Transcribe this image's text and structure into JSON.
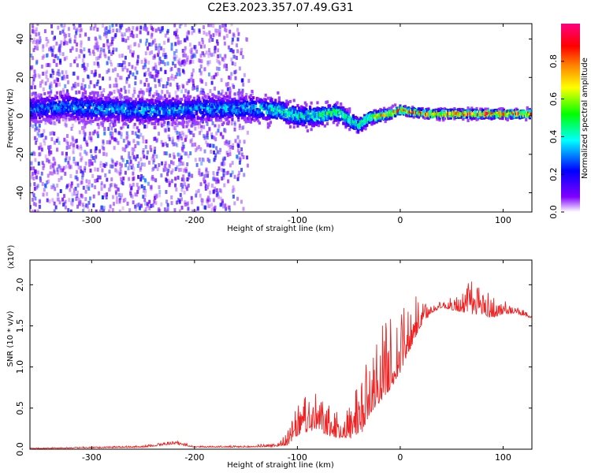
{
  "title": "C2E3.2023.357.07.49.G31",
  "chart_data": [
    {
      "type": "heatmap",
      "xlabel": "Height of straight line (km)",
      "ylabel": "Frequency (Hz)",
      "xlim": [
        -360,
        128
      ],
      "ylim": [
        -50,
        48
      ],
      "xticks": [
        -300,
        -200,
        -100,
        0,
        100
      ],
      "xtick_labels": [
        "-300",
        "-200",
        "-100",
        "0",
        "100"
      ],
      "yticks": [
        -40,
        -20,
        0,
        20,
        40
      ],
      "ytick_labels": [
        "-40",
        "-20",
        "0",
        "20",
        "40"
      ],
      "grid": false,
      "colorbar": {
        "label": "Normalized spectral amplitude",
        "range": [
          0,
          1
        ],
        "ticks": [
          0,
          0.2,
          0.4,
          0.6,
          0.8
        ],
        "tick_labels": [
          "0.0",
          "0.2",
          "0.4",
          "0.6",
          "0.8"
        ],
        "colors": [
          "#ffffff",
          "#8000ff",
          "#0000ff",
          "#00ffff",
          "#00ff00",
          "#ffff00",
          "#ff8000",
          "#ff0000",
          "#ff0080"
        ]
      },
      "ridge_center_hz": {
        "x": [
          -360,
          -330,
          -300,
          -260,
          -220,
          -180,
          -150,
          -120,
          -100,
          -80,
          -60,
          -50,
          -40,
          -30,
          -20,
          -10,
          0,
          10,
          30,
          60,
          100,
          128
        ],
        "y": [
          3,
          5,
          4,
          3,
          3,
          4,
          4,
          3,
          0,
          0,
          2,
          -2,
          -5,
          -1,
          0,
          1,
          3,
          2,
          1,
          1,
          1,
          1
        ]
      },
      "ridge_halfwidth_hz": {
        "x": [
          -360,
          -150,
          -100,
          -50,
          -30,
          0,
          128
        ],
        "y": [
          6,
          6,
          5,
          4,
          3,
          2,
          2
        ]
      },
      "ridge_peak_amplitude": {
        "x": [
          -360,
          -300,
          -250,
          -200,
          -150,
          -120,
          -100,
          -80,
          -60,
          -40,
          -20,
          0,
          40,
          80,
          128
        ],
        "y": [
          0.3,
          0.35,
          0.35,
          0.35,
          0.35,
          0.45,
          0.45,
          0.5,
          0.55,
          0.5,
          0.75,
          0.85,
          0.9,
          0.9,
          0.85
        ]
      },
      "scatter_coverage_x": [
        -360,
        -140
      ]
    },
    {
      "type": "line",
      "xlabel": "Height of straight line (km)",
      "ylabel": "SNR (10 * v/v)",
      "y_multiplier_label": "(x10⁴)",
      "xlim": [
        -360,
        128
      ],
      "ylim": [
        0,
        2.3
      ],
      "xticks": [
        -300,
        -200,
        -100,
        0,
        100
      ],
      "xtick_labels": [
        "-300",
        "-200",
        "-100",
        "0",
        "100"
      ],
      "yticks": [
        0,
        0.5,
        1.0,
        1.5,
        2.0
      ],
      "ytick_labels": [
        "0.0",
        "0.5",
        "1.0",
        "1.5",
        "2.0"
      ],
      "grid": false,
      "series": [
        {
          "color": "#ee2222",
          "envelope_x": [
            -360,
            -300,
            -250,
            -220,
            -200,
            -150,
            -120,
            -110,
            -100,
            -90,
            -80,
            -70,
            -60,
            -50,
            -40,
            -30,
            -20,
            -10,
            0,
            10,
            20,
            30,
            40,
            60,
            70,
            80,
            90,
            100,
            110,
            120,
            128
          ],
          "envelope_y": [
            0.01,
            0.02,
            0.03,
            0.08,
            0.03,
            0.03,
            0.05,
            0.1,
            0.3,
            0.38,
            0.4,
            0.3,
            0.25,
            0.3,
            0.35,
            0.7,
            0.9,
            1.05,
            1.2,
            1.45,
            1.6,
            1.7,
            1.75,
            1.75,
            1.8,
            1.78,
            1.7,
            1.7,
            1.68,
            1.65,
            1.62
          ],
          "spike_amplitude_y": [
            0.005,
            0.01,
            0.015,
            0.03,
            0.01,
            0.015,
            0.03,
            0.1,
            0.25,
            0.3,
            0.3,
            0.25,
            0.2,
            0.3,
            0.45,
            0.5,
            0.6,
            0.6,
            0.5,
            0.4,
            0.2,
            0.08,
            0.05,
            0.15,
            0.3,
            0.25,
            0.2,
            0.1,
            0.05,
            0.05,
            0.05
          ]
        }
      ]
    }
  ]
}
